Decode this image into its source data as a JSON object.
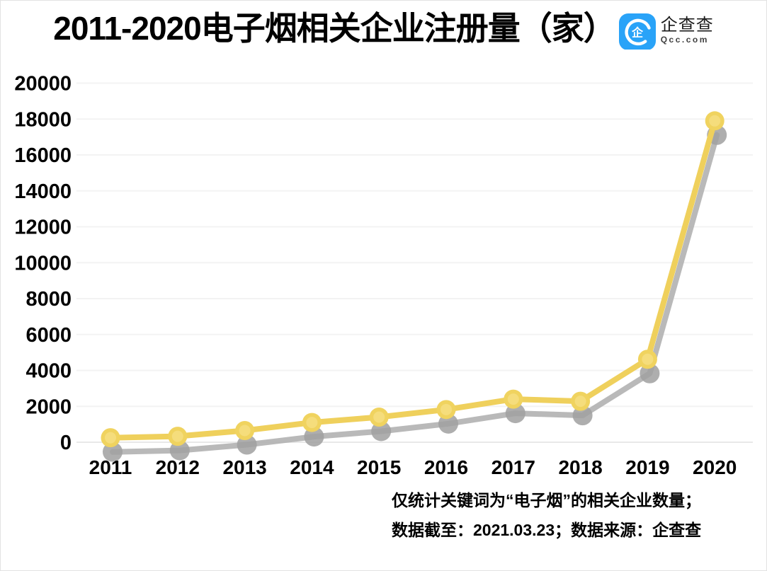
{
  "header": {
    "title": "2011-2020电子烟相关企业注册量（家）",
    "logo": {
      "icon": "qcc-logo-icon",
      "name": "企查查",
      "domain": "Qcc.com",
      "brand_blue": "#29A3F8"
    }
  },
  "chart_data": {
    "type": "line",
    "title": "2011-2020电子烟相关企业注册量（家）",
    "categories": [
      "2011",
      "2012",
      "2013",
      "2014",
      "2015",
      "2016",
      "2017",
      "2018",
      "2019",
      "2020"
    ],
    "series": [
      {
        "name": "电子烟相关企业注册量（家）",
        "values": [
          250,
          330,
          650,
          1100,
          1400,
          1820,
          2400,
          2280,
          4620,
          17900
        ]
      }
    ],
    "xlabel": "",
    "ylabel": "",
    "ylim": [
      0,
      20000
    ],
    "y_ticks": [
      0,
      2000,
      4000,
      6000,
      8000,
      10000,
      12000,
      14000,
      16000,
      18000,
      20000
    ],
    "grid": true,
    "legend_position": "none",
    "style": {
      "line_color": "#EFD05C",
      "dot_color": "#F0D35F",
      "dot_inner_color": "#F5DD7C",
      "shadow_line_color": "#B1B1B1",
      "shadow_dot_color": "#A0A0A0",
      "grid_color": "#F3F3F3",
      "zero_line_color": "#E8E8E8",
      "text_color": "#000000"
    }
  },
  "footnotes": [
    "仅统计关键词为“电子烟”的相关企业数量；",
    "数据截至：2021.03.23；数据来源：企查查"
  ]
}
